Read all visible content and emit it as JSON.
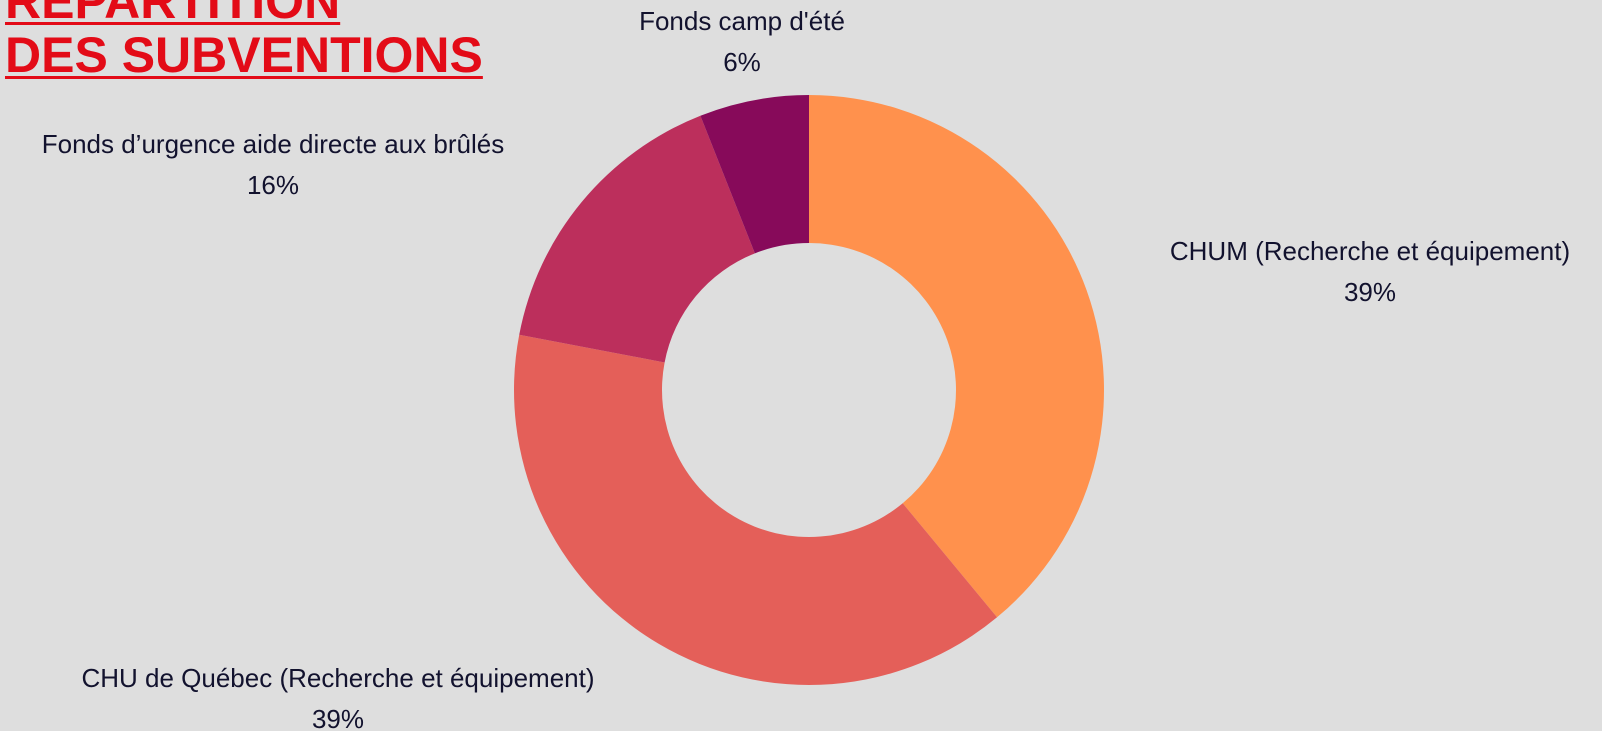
{
  "title": {
    "line1": "RÉPARTITION",
    "line2": "DES SUBVENTIONS",
    "color": "#e30b17"
  },
  "colors": {
    "background": "#dedede",
    "label_text": "#12122e"
  },
  "chart_data": {
    "type": "pie",
    "variant": "donut",
    "title": "RÉPARTITION DES SUBVENTIONS",
    "grid": false,
    "legend": "none",
    "slices": [
      {
        "name": "CHUM (Recherche et équipement)",
        "value": 39,
        "value_label": "39%",
        "color": "#ff914d"
      },
      {
        "name": "CHU de Québec (Recherche et équipement)",
        "value": 39,
        "value_label": "39%",
        "color": "#e45f59"
      },
      {
        "name": "Fonds d’urgence aide directe aux brûlés",
        "value": 16,
        "value_label": "16%",
        "color": "#bc2f5c"
      },
      {
        "name": "Fonds camp d'été",
        "value": 6,
        "value_label": "6%",
        "color": "#870a5a"
      }
    ]
  }
}
